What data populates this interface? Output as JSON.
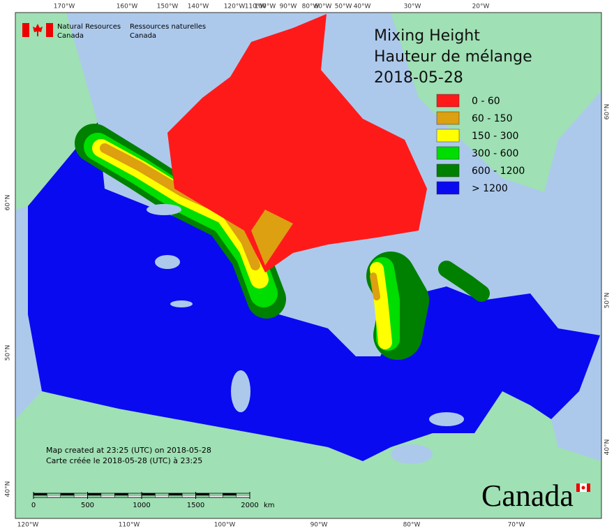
{
  "logo": {
    "english": [
      "Natural Resources",
      "Canada"
    ],
    "french": [
      "Ressources naturelles",
      "Canada"
    ]
  },
  "title": [
    "Mixing Height",
    "Hauteur de mélange",
    "2018-05-28"
  ],
  "legend": [
    {
      "label": "0 - 60",
      "color": "#ff1a1a"
    },
    {
      "label": "60 - 150",
      "color": "#dca010"
    },
    {
      "label": "150 - 300",
      "color": "#ffff00"
    },
    {
      "label": "300 - 600",
      "color": "#00dd00"
    },
    {
      "label": "600 - 1200",
      "color": "#008000"
    },
    {
      "label": "> 1200",
      "color": "#0a0af0"
    }
  ],
  "graticule": {
    "top": [
      "170°W",
      "160°W",
      "150°W",
      "140°W",
      "120°W",
      "110°W",
      "100°W",
      "90°W",
      "80°W",
      "60°W",
      "50°W",
      "40°W",
      "30°W",
      "20°W"
    ],
    "bottom": [
      "120°W",
      "110°W",
      "100°W",
      "90°W",
      "80°W",
      "70°W"
    ],
    "left": [
      "60°N",
      "50°N",
      "40°N"
    ],
    "right": [
      "60°N",
      "50°N",
      "40°N"
    ]
  },
  "notes": [
    "Map created at 23:25 (UTC) on 2018-05-28",
    "Carte créée le 2018-05-28 (UTC) à 23:25"
  ],
  "scale_bar": {
    "ticks": [
      0,
      500,
      1000,
      1500,
      2000
    ],
    "unit": "km"
  },
  "wordmark": "Canada"
}
